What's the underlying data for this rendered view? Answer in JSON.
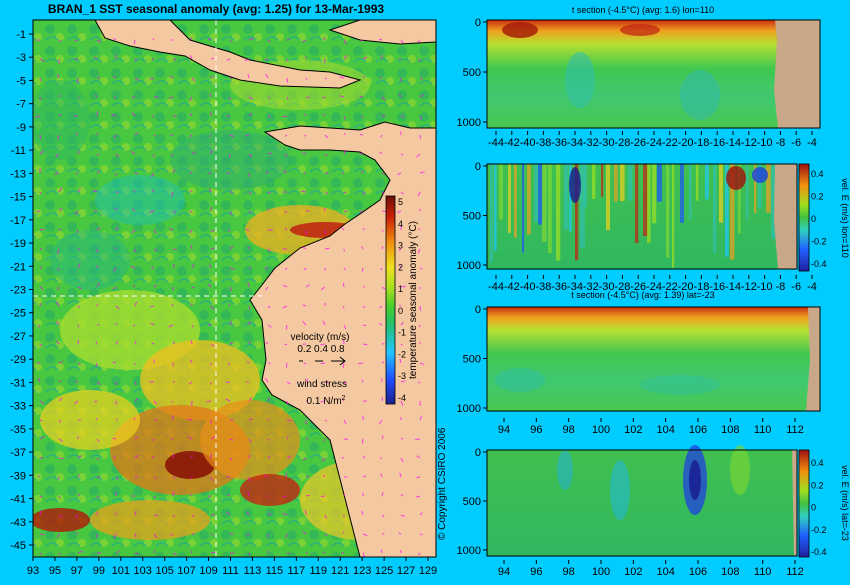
{
  "colors": {
    "background": "#00ccff",
    "land": "#f4c8a0",
    "land_section": "#c8a888",
    "text": "#000000",
    "velocity_arrow": "#ff00ff",
    "marker_line": "#ffffff"
  },
  "main_map": {
    "title": "BRAN_1  SST seasonal anomaly  (avg: 1.25) for 13-Mar-1993",
    "y_ticks": [
      "-1",
      "-3",
      "-5",
      "-7",
      "-9",
      "-11",
      "-13",
      "-15",
      "-17",
      "-19",
      "-21",
      "-23",
      "-25",
      "-27",
      "-29",
      "-31",
      "-33",
      "-35",
      "-37",
      "-39",
      "-41",
      "-43",
      "-45"
    ],
    "x_ticks": [
      "93",
      "95",
      "97",
      "99",
      "101",
      "103",
      "105",
      "107",
      "109",
      "111",
      "113",
      "115",
      "117",
      "119",
      "121",
      "123",
      "125",
      "127",
      "129"
    ],
    "colorbar_label": "temperature seasonal anomaly (°C)",
    "colorbar_ticks": [
      "5",
      "4",
      "3",
      "2",
      "1",
      "0",
      "-1",
      "-2",
      "-3",
      "-4"
    ],
    "velocity_title": "velocity (m/s)",
    "velocity_values": "0.2 0.4 0.8",
    "wind_title": "wind stress",
    "wind_value": "0.1 N/m",
    "wind_exp": "2"
  },
  "copyright": "© Copyright CSIRO 2006",
  "chart_data": [
    {
      "type": "heatmap",
      "title": "BRAN_1  SST seasonal anomaly  (avg: 1.25) for 13-Mar-1993",
      "xlim": [
        93,
        130
      ],
      "ylim": [
        -45,
        0
      ],
      "colorbar": {
        "label": "temperature seasonal anomaly (°C)",
        "range": [
          -4,
          5
        ]
      },
      "markers": {
        "lon": 110,
        "lat": -23
      }
    },
    {
      "type": "heatmap",
      "title": "t section (-4.5°C) (avg: 1.6) lon=110",
      "x_ticks": [
        "-44",
        "-42",
        "-40",
        "-38",
        "-36",
        "-34",
        "-32",
        "-30",
        "-28",
        "-26",
        "-24",
        "-22",
        "-20",
        "-18",
        "-16",
        "-14",
        "-12",
        "-10",
        "-8",
        "-6",
        "-4"
      ],
      "y_ticks": [
        "0",
        "500",
        "1000"
      ]
    },
    {
      "type": "heatmap",
      "title": "",
      "x_ticks": [
        "-44",
        "-42",
        "-40",
        "-38",
        "-36",
        "-34",
        "-32",
        "-30",
        "-28",
        "-26",
        "-24",
        "-22",
        "-20",
        "-18",
        "-16",
        "-14",
        "-12",
        "-10",
        "-8",
        "-6",
        "-4"
      ],
      "y_ticks": [
        "0",
        "500",
        "1000"
      ],
      "colorbar": {
        "label": "vel. E (m/s) lon=110",
        "ticks": [
          "0.4",
          "0.2",
          "0",
          "-0.2",
          "-0.4"
        ]
      }
    },
    {
      "type": "heatmap",
      "title": "t section (-4.5°C) (avg: 1.39) lat=-23",
      "x_ticks": [
        "94",
        "96",
        "98",
        "100",
        "102",
        "104",
        "106",
        "108",
        "110",
        "112"
      ],
      "y_ticks": [
        "0",
        "500",
        "1000"
      ]
    },
    {
      "type": "heatmap",
      "title": "",
      "x_ticks": [
        "94",
        "96",
        "98",
        "100",
        "102",
        "104",
        "106",
        "108",
        "110",
        "112"
      ],
      "y_ticks": [
        "0",
        "500",
        "1000"
      ],
      "colorbar": {
        "label": "vel. E (m/s) lat=-23",
        "ticks": [
          "0.4",
          "0.2",
          "0",
          "-0.2",
          "-0.4"
        ]
      }
    }
  ]
}
